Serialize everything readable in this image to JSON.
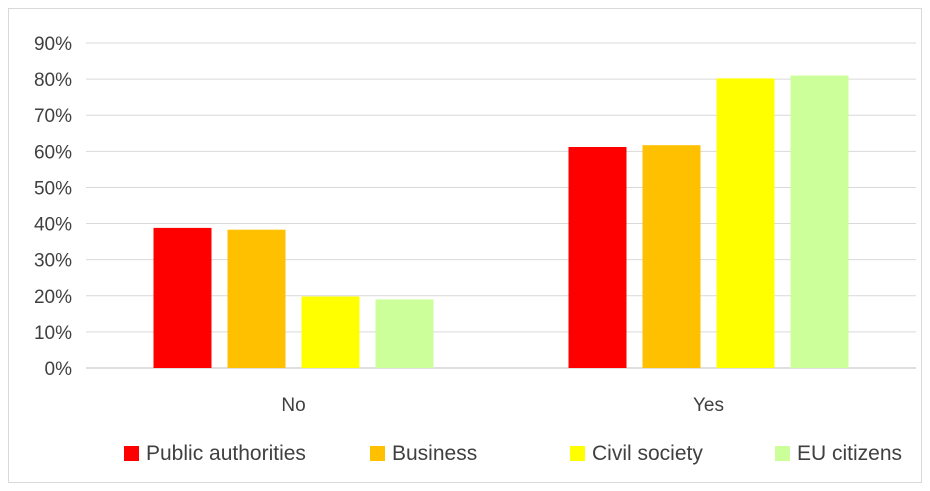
{
  "chart_data": {
    "type": "bar",
    "title": "",
    "xlabel": "",
    "ylabel": "",
    "categories": [
      "No",
      "Yes"
    ],
    "ylim": [
      0,
      90
    ],
    "y_ticks": [
      "0%",
      "10%",
      "20%",
      "30%",
      "40%",
      "50%",
      "60%",
      "70%",
      "80%",
      "90%"
    ],
    "y_unit": "%",
    "grid": true,
    "legend_position": "bottom",
    "series": [
      {
        "name": "Public authorities",
        "color": "#ff0000",
        "values": [
          38.8,
          61.2
        ]
      },
      {
        "name": "Business",
        "color": "#ffc000",
        "values": [
          38.3,
          61.7
        ]
      },
      {
        "name": "Civil society",
        "color": "#ffff00",
        "values": [
          19.8,
          80.2
        ]
      },
      {
        "name": "EU citizens",
        "color": "#ccff99",
        "values": [
          19.0,
          81.0
        ]
      }
    ]
  }
}
